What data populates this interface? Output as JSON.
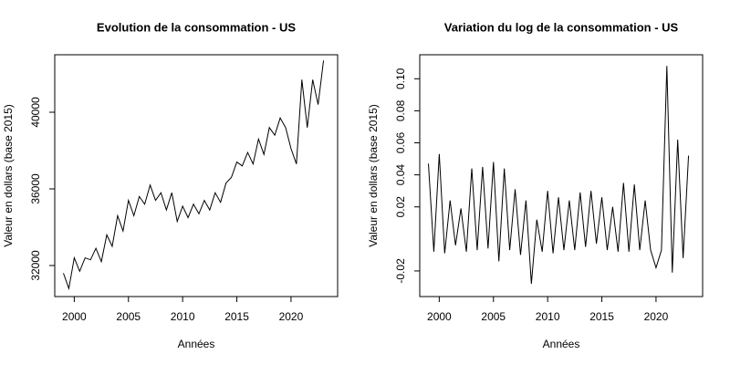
{
  "chart_data": [
    {
      "type": "line",
      "title": "Evolution de la consommation -  US",
      "x_label": "Années",
      "y_label": "Valeur en dollars (base 2015)",
      "x": [
        1999,
        1999.5,
        2000,
        2000.5,
        2001,
        2001.5,
        2002,
        2002.5,
        2003,
        2003.5,
        2004,
        2004.5,
        2005,
        2005.5,
        2006,
        2006.5,
        2007,
        2007.5,
        2008,
        2008.5,
        2009,
        2009.5,
        2010,
        2010.5,
        2011,
        2011.5,
        2012,
        2012.5,
        2013,
        2013.5,
        2014,
        2014.5,
        2015,
        2015.5,
        2016,
        2016.5,
        2017,
        2017.5,
        2018,
        2018.5,
        2019,
        2019.5,
        2020,
        2020.5,
        2021,
        2021.5,
        2022,
        2022.5,
        2023
      ],
      "series": [
        {
          "color": "#000000",
          "values": [
            31600,
            30800,
            32400,
            31700,
            32400,
            32300,
            32900,
            32200,
            33600,
            33000,
            34600,
            33800,
            35400,
            34600,
            35600,
            35200,
            36200,
            35400,
            35800,
            34900,
            35800,
            34300,
            35100,
            34500,
            35200,
            34700,
            35400,
            34900,
            35800,
            35300,
            36300,
            36600,
            37400,
            37200,
            37900,
            37300,
            38600,
            37800,
            39200,
            38800,
            39700,
            39200,
            38100,
            37300,
            41700,
            39200,
            41700,
            40400,
            42700
          ]
        }
      ],
      "xlim": [
        1998.2,
        2024.3
      ],
      "ylim": [
        30380,
        43000
      ],
      "xticks": [
        2000,
        2005,
        2010,
        2015,
        2020
      ],
      "yticks": [
        32000,
        36000,
        40000
      ]
    },
    {
      "type": "line",
      "title": "Variation du log de la consommation -  US",
      "x_label": "Années",
      "y_label": "Valeur en dollars (base 2015)",
      "x": [
        1999,
        1999.5,
        2000,
        2000.5,
        2001,
        2001.5,
        2002,
        2002.5,
        2003,
        2003.5,
        2004,
        2004.5,
        2005,
        2005.5,
        2006,
        2006.5,
        2007,
        2007.5,
        2008,
        2008.5,
        2009,
        2009.5,
        2010,
        2010.5,
        2011,
        2011.5,
        2012,
        2012.5,
        2013,
        2013.5,
        2014,
        2014.5,
        2015,
        2015.5,
        2016,
        2016.5,
        2017,
        2017.5,
        2018,
        2018.5,
        2019,
        2019.5,
        2020,
        2020.5,
        2021,
        2021.5,
        2022,
        2022.5,
        2023
      ],
      "series": [
        {
          "color": "#000000",
          "values": [
            0.047,
            -0.008,
            0.053,
            -0.009,
            0.024,
            -0.004,
            0.019,
            -0.008,
            0.044,
            -0.007,
            0.045,
            -0.006,
            0.048,
            -0.014,
            0.044,
            -0.007,
            0.031,
            -0.01,
            0.024,
            -0.028,
            0.012,
            -0.008,
            0.03,
            -0.009,
            0.026,
            -0.007,
            0.024,
            -0.007,
            0.029,
            -0.005,
            0.03,
            -0.003,
            0.026,
            -0.007,
            0.02,
            -0.008,
            0.035,
            -0.008,
            0.034,
            -0.007,
            0.024,
            -0.007,
            -0.018,
            -0.007,
            0.108,
            -0.021,
            0.062,
            -0.012,
            0.052
          ]
        }
      ],
      "xlim": [
        1998.2,
        2024.3
      ],
      "ylim": [
        -0.036,
        0.115
      ],
      "xticks": [
        2000,
        2005,
        2010,
        2015,
        2020
      ],
      "yticks": [
        -0.02,
        0.02,
        0.04,
        0.06,
        0.08,
        {
          "value": 0.1,
          "label": "0.10"
        }
      ]
    }
  ]
}
